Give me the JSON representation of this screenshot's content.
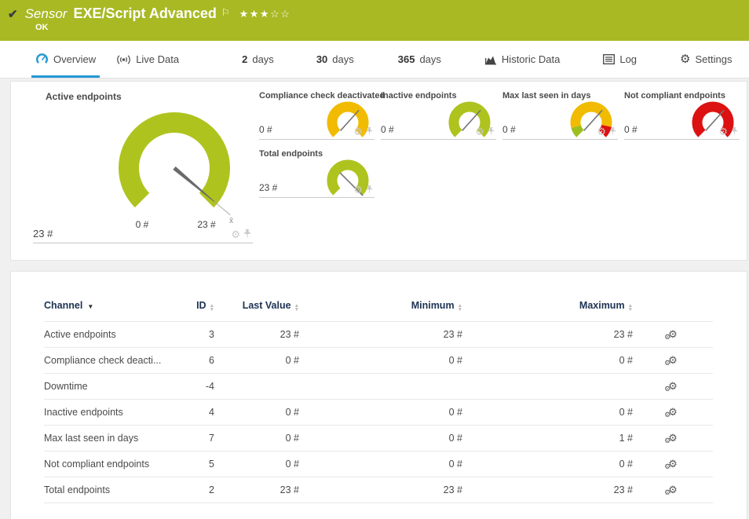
{
  "header": {
    "kind_label": "Sensor",
    "title": "EXE/Script Advanced",
    "status": "OK",
    "stars": "★★★☆☆",
    "check_icon": "✔",
    "flag_icon": "⚐"
  },
  "tabs": [
    {
      "label": "Overview",
      "active": true
    },
    {
      "label": "Live Data"
    },
    {
      "prefix": "2",
      "label": "days"
    },
    {
      "prefix": "30",
      "label": "days"
    },
    {
      "prefix": "365",
      "label": "days"
    },
    {
      "label": "Historic Data"
    },
    {
      "label": "Log"
    },
    {
      "label": "Settings"
    }
  ],
  "colors": {
    "header_bg": "#a8b924",
    "accent_blue": "#2498d3",
    "gauge_green": "#afc31e",
    "gauge_yellow": "#f0bb00",
    "gauge_red": "#dc1212",
    "table_header_text": "#1c3353"
  },
  "gauges": {
    "primary": {
      "title": "Active endpoints",
      "value": "23 #",
      "min_label": "0 #",
      "max_label": "23 #",
      "mean_marker": "x̄",
      "segments": [
        {
          "color": "#afc31e",
          "from": 0,
          "to": 1
        }
      ],
      "needle_deg": 40
    },
    "small": [
      {
        "title": "Compliance check deactivated",
        "value": "0 #",
        "segments": [
          {
            "color": "#f0bb00",
            "from": 0,
            "to": 1
          }
        ],
        "needle_deg": -48,
        "tip": 21
      },
      {
        "title": "Inactive endpoints",
        "value": "0 #",
        "segments": [
          {
            "color": "#afc31e",
            "from": 0,
            "to": 1
          }
        ],
        "needle_deg": -48,
        "tip": 21
      },
      {
        "title": "Max last seen in days",
        "value": "0 #",
        "segments": [
          {
            "color": "#9cbf1e",
            "from": 0,
            "to": 0.11
          },
          {
            "color": "#f0bb00",
            "from": 0.11,
            "to": 0.88
          },
          {
            "color": "#dc1212",
            "from": 0.88,
            "to": 1
          }
        ],
        "needle_deg": -48,
        "tip": 21
      },
      {
        "title": "Not compliant endpoints",
        "value": "0 #",
        "segments": [
          {
            "color": "#dc1212",
            "from": 0,
            "to": 1
          }
        ],
        "needle_deg": -48,
        "tip": 21
      },
      {
        "title": "Total endpoints",
        "value": "23 #",
        "segments": [
          {
            "color": "#afc31e",
            "from": 0,
            "to": 1
          }
        ],
        "needle_deg": 45,
        "tip": 27
      }
    ]
  },
  "channel_table": {
    "headers": {
      "channel": "Channel",
      "id": "ID",
      "last_value": "Last Value",
      "minimum": "Minimum",
      "maximum": "Maximum"
    },
    "rows": [
      {
        "channel": "Active endpoints",
        "id": "3",
        "last": "23 #",
        "min": "23 #",
        "max": "23 #"
      },
      {
        "channel": "Compliance check deacti...",
        "id": "6",
        "last": "0 #",
        "min": "0 #",
        "max": "0 #"
      },
      {
        "channel": "Downtime",
        "id": "-4",
        "last": "",
        "min": "",
        "max": ""
      },
      {
        "channel": "Inactive endpoints",
        "id": "4",
        "last": "0 #",
        "min": "0 #",
        "max": "0 #"
      },
      {
        "channel": "Max last seen in days",
        "id": "7",
        "last": "0 #",
        "min": "0 #",
        "max": "1 #"
      },
      {
        "channel": "Not compliant endpoints",
        "id": "5",
        "last": "0 #",
        "min": "0 #",
        "max": "0 #"
      },
      {
        "channel": "Total endpoints",
        "id": "2",
        "last": "23 #",
        "min": "23 #",
        "max": "23 #"
      }
    ]
  }
}
